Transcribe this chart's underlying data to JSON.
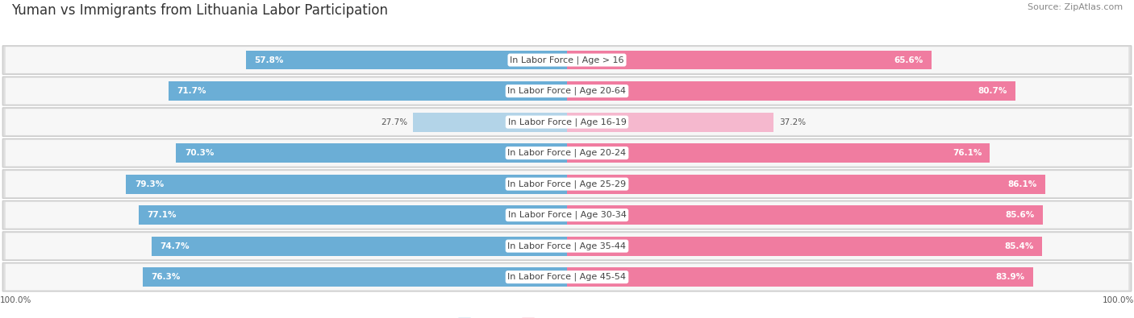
{
  "title": "Yuman vs Immigrants from Lithuania Labor Participation",
  "source": "Source: ZipAtlas.com",
  "categories": [
    "In Labor Force | Age > 16",
    "In Labor Force | Age 20-64",
    "In Labor Force | Age 16-19",
    "In Labor Force | Age 20-24",
    "In Labor Force | Age 25-29",
    "In Labor Force | Age 30-34",
    "In Labor Force | Age 35-44",
    "In Labor Force | Age 45-54"
  ],
  "yuman_values": [
    57.8,
    71.7,
    27.7,
    70.3,
    79.3,
    77.1,
    74.7,
    76.3
  ],
  "immigrant_values": [
    65.6,
    80.7,
    37.2,
    76.1,
    86.1,
    85.6,
    85.4,
    83.9
  ],
  "yuman_color": "#6baed6",
  "yuman_color_light": "#b3d4e8",
  "immigrant_color": "#f07ca0",
  "immigrant_color_light": "#f5b8ce",
  "row_bg_color": "#e8e8e8",
  "row_inner_bg": "#f5f5f5",
  "max_value": 100.0,
  "bar_height": 0.62,
  "title_fontsize": 12,
  "label_fontsize": 8,
  "value_fontsize": 7.5,
  "legend_fontsize": 9,
  "source_fontsize": 8,
  "light_rows": [
    2
  ]
}
